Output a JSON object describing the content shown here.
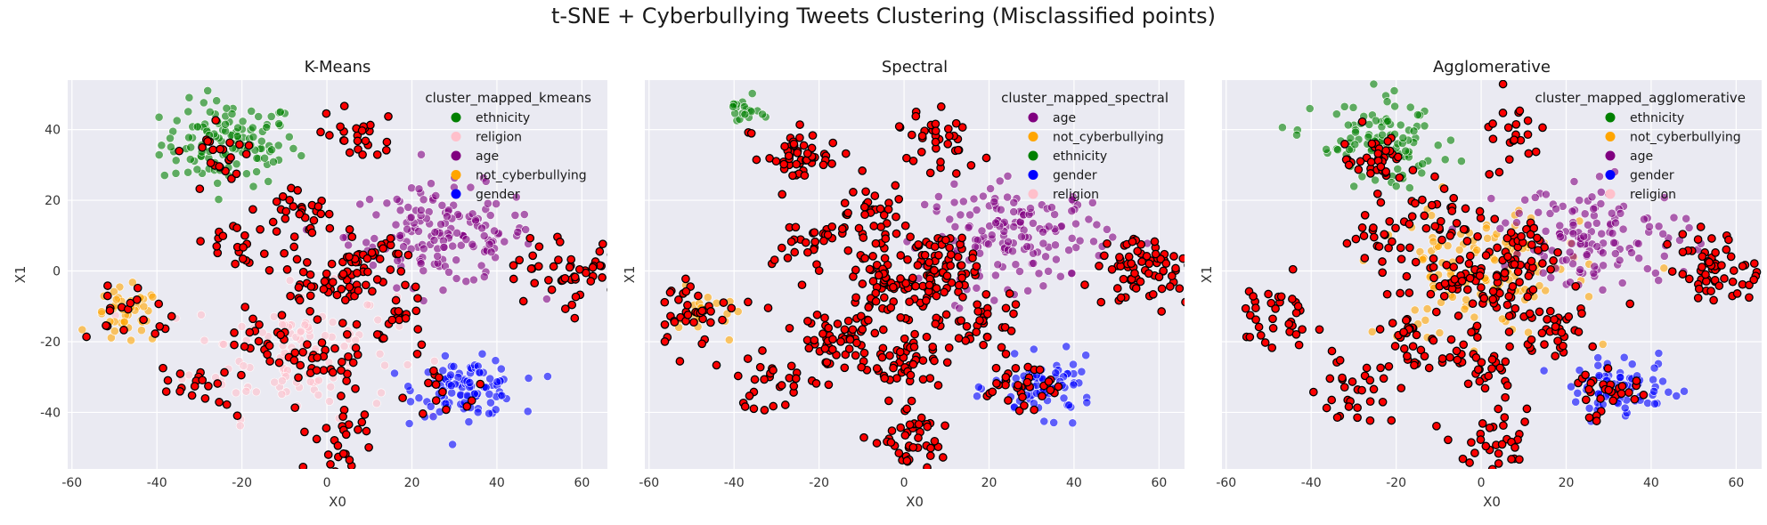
{
  "figure": {
    "title": "t-SNE + Cyberbullying Tweets Clustering (Misclassified points)"
  },
  "colors": {
    "ethnicity": "#008000",
    "religion": "#ffc0cb",
    "age": "#800080",
    "not_cyberbullying": "#ffa500",
    "gender": "#0000ff",
    "misclassified": "#ff0000",
    "panel_bg": "#eaeaf2",
    "grid": "#ffffff"
  },
  "chart_data": [
    {
      "type": "scatter",
      "title": "K-Means",
      "xlabel": "X0",
      "ylabel": "X1",
      "xlim": [
        -61,
        66
      ],
      "ylim": [
        -56,
        54
      ],
      "xticks": [
        -60,
        -40,
        -20,
        0,
        20,
        40,
        60
      ],
      "yticks": [
        -40,
        -20,
        0,
        20,
        40
      ],
      "grid": true,
      "legend": {
        "title": "cluster_mapped_kmeans",
        "placement": "top-right",
        "entries": [
          "ethnicity",
          "religion",
          "age",
          "not_cyberbullying",
          "gender"
        ]
      },
      "clusters": [
        {
          "name": "ethnicity",
          "center": [
            -23,
            36
          ],
          "spread": [
            8,
            6
          ],
          "count": 120
        },
        {
          "name": "religion",
          "center": [
            -8,
            -23
          ],
          "spread": [
            12,
            9
          ],
          "count": 120
        },
        {
          "name": "age",
          "center": [
            27,
            10
          ],
          "spread": [
            11,
            7
          ],
          "count": 160
        },
        {
          "name": "not_cyberbullying",
          "center": [
            -47,
            -13
          ],
          "spread": [
            4,
            4
          ],
          "count": 40
        },
        {
          "name": "gender",
          "center": [
            33,
            -33
          ],
          "spread": [
            6,
            4
          ],
          "count": 110
        }
      ],
      "misclassified": {
        "count": 380
      }
    },
    {
      "type": "scatter",
      "title": "Spectral",
      "xlabel": "X0",
      "ylabel": "X1",
      "xlim": [
        -61,
        66
      ],
      "ylim": [
        -56,
        54
      ],
      "xticks": [
        -60,
        -40,
        -20,
        0,
        20,
        40,
        60
      ],
      "yticks": [
        -40,
        -20,
        0,
        20,
        40
      ],
      "grid": true,
      "legend": {
        "title": "cluster_mapped_spectral",
        "placement": "top-right",
        "entries": [
          "age",
          "not_cyberbullying",
          "ethnicity",
          "gender",
          "religion"
        ]
      },
      "clusters": [
        {
          "name": "age",
          "center": [
            27,
            10
          ],
          "spread": [
            11,
            7
          ],
          "count": 160
        },
        {
          "name": "not_cyberbullying",
          "center": [
            -47,
            -13
          ],
          "spread": [
            4,
            4
          ],
          "count": 20
        },
        {
          "name": "ethnicity",
          "center": [
            -38,
            45
          ],
          "spread": [
            2,
            2
          ],
          "count": 20
        },
        {
          "name": "gender",
          "center": [
            33,
            -33
          ],
          "spread": [
            6,
            4
          ],
          "count": 80
        }
      ],
      "misclassified": {
        "count": 650
      }
    },
    {
      "type": "scatter",
      "title": "Agglomerative",
      "xlabel": "X0",
      "ylabel": "X1",
      "xlim": [
        -61,
        66
      ],
      "ylim": [
        -56,
        54
      ],
      "xticks": [
        -60,
        -40,
        -20,
        0,
        20,
        40,
        60
      ],
      "yticks": [
        -40,
        -20,
        0,
        20,
        40
      ],
      "grid": true,
      "legend": {
        "title": "cluster_mapped_agglomerative",
        "placement": "top-right",
        "entries": [
          "ethnicity",
          "not_cyberbullying",
          "age",
          "gender",
          "religion"
        ]
      },
      "clusters": [
        {
          "name": "ethnicity",
          "center": [
            -23,
            36
          ],
          "spread": [
            8,
            6
          ],
          "count": 100
        },
        {
          "name": "not_cyberbullying",
          "center": [
            0,
            0
          ],
          "spread": [
            12,
            10
          ],
          "count": 120
        },
        {
          "name": "age",
          "center": [
            27,
            10
          ],
          "spread": [
            11,
            7
          ],
          "count": 140
        },
        {
          "name": "gender",
          "center": [
            33,
            -33
          ],
          "spread": [
            6,
            4
          ],
          "count": 80
        }
      ],
      "misclassified": {
        "count": 520
      }
    }
  ]
}
